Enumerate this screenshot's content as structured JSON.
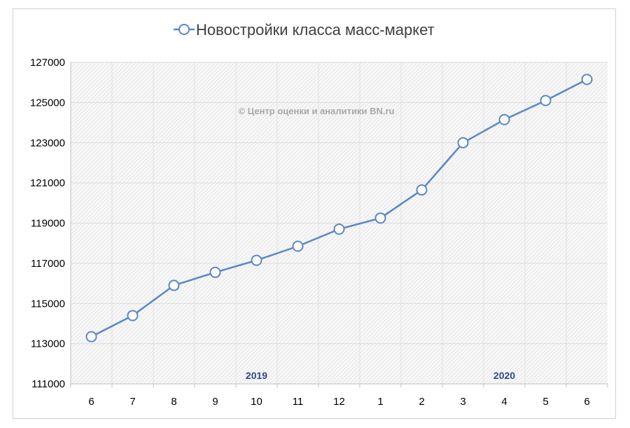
{
  "chart_data": {
    "type": "line",
    "title": "Новостройки класса масс-маркет",
    "watermark": "© Центр оценки и аналитики BN.ru",
    "categories": [
      "6",
      "7",
      "8",
      "9",
      "10",
      "11",
      "12",
      "1",
      "2",
      "3",
      "4",
      "5",
      "6"
    ],
    "year_labels": [
      {
        "label": "2019",
        "at_category": 4.5
      },
      {
        "label": "2020",
        "at_category": 10.5
      }
    ],
    "series": [
      {
        "name": "Новостройки класса масс-маркет",
        "values": [
          113350,
          114400,
          115900,
          116550,
          117150,
          117850,
          118700,
          119250,
          120650,
          123000,
          124150,
          125100,
          126150
        ],
        "color": "#5b87c5",
        "marker": "circle"
      }
    ],
    "ylim": [
      111000,
      127000
    ],
    "yticks": [
      111000,
      113000,
      115000,
      117000,
      119000,
      121000,
      123000,
      125000,
      127000
    ],
    "grid": true,
    "legend": "top",
    "colors": {
      "line": "#5b87c5",
      "year_label": "#2e4a8a",
      "watermark": "#a8a8a8",
      "grid": "#dcdcdc",
      "plot_hatch": "#e6e6e6"
    }
  }
}
